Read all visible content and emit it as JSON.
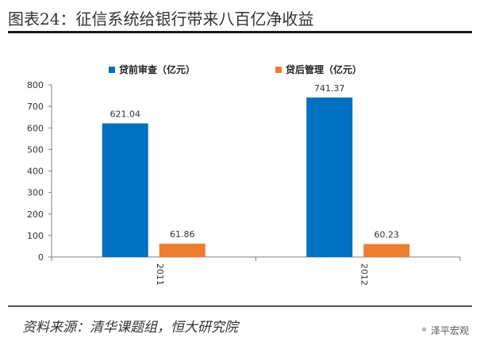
{
  "page": {
    "title": "图表24：征信系统给银行带来八百亿净收益",
    "source": "资料来源：清华课题组，恒大研究院",
    "watermark": "泽平宏观",
    "watermark_icon": "wechat-icon"
  },
  "chart_data": {
    "type": "bar",
    "categories": [
      "2011",
      "2012"
    ],
    "series": [
      {
        "name": "贷前审查（亿元）",
        "values": [
          621.04,
          741.37
        ],
        "color": "#0070C0"
      },
      {
        "name": "贷后管理（亿元）",
        "values": [
          61.86,
          60.23
        ],
        "color": "#ED7D31"
      }
    ],
    "data_labels": [
      [
        "621.04",
        "741.37"
      ],
      [
        "61.86",
        "60.23"
      ]
    ],
    "y_ticks": [
      0,
      100,
      200,
      300,
      400,
      500,
      600,
      700,
      800
    ],
    "ylim": [
      0,
      800
    ],
    "grid": false,
    "legend_position": "top",
    "x_tick_rotation": "vertical"
  }
}
